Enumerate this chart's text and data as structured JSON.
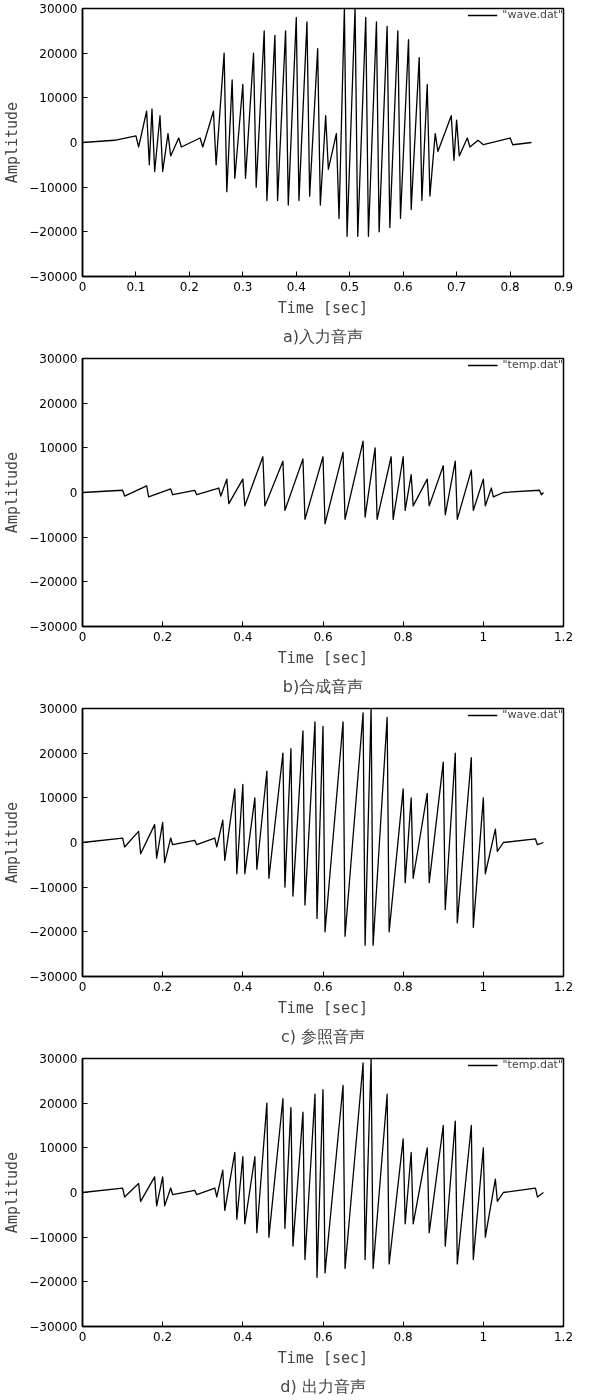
{
  "chart_data": [
    {
      "type": "line",
      "title": "a)入力音声",
      "xlabel": "Time [sec]",
      "ylabel": "Amplitude",
      "xlim": [
        0,
        0.9
      ],
      "xticks": [
        0,
        0.1,
        0.2,
        0.3,
        0.4,
        0.5,
        0.6,
        0.7,
        0.8,
        0.9
      ],
      "ylim": [
        -30000,
        30000
      ],
      "yticks": [
        -30000,
        -20000,
        -10000,
        0,
        10000,
        20000,
        30000
      ],
      "grid": false,
      "legend": "top right",
      "marker": "none",
      "line_style": "solid",
      "series": [
        {
          "name": "\"wave.dat\"",
          "color": "#000000",
          "x": [
            0,
            0.06,
            0.1,
            0.105,
            0.12,
            0.125,
            0.13,
            0.135,
            0.145,
            0.15,
            0.16,
            0.165,
            0.18,
            0.185,
            0.22,
            0.225,
            0.245,
            0.25,
            0.265,
            0.27,
            0.28,
            0.285,
            0.3,
            0.305,
            0.32,
            0.325,
            0.34,
            0.345,
            0.36,
            0.365,
            0.38,
            0.385,
            0.4,
            0.405,
            0.42,
            0.425,
            0.44,
            0.445,
            0.455,
            0.46,
            0.475,
            0.48,
            0.49,
            0.495,
            0.51,
            0.515,
            0.53,
            0.535,
            0.55,
            0.555,
            0.57,
            0.575,
            0.59,
            0.595,
            0.61,
            0.615,
            0.63,
            0.635,
            0.645,
            0.65,
            0.66,
            0.665,
            0.69,
            0.695,
            0.7,
            0.705,
            0.72,
            0.725,
            0.74,
            0.75,
            0.8,
            0.805,
            0.84
          ],
          "values": [
            0,
            500,
            1500,
            -1000,
            7000,
            -5000,
            7500,
            -6500,
            6000,
            -6500,
            2000,
            -3000,
            1000,
            -1000,
            1000,
            -1000,
            7000,
            -5000,
            20000,
            -11000,
            14000,
            -8000,
            13000,
            -8000,
            20000,
            -10000,
            25000,
            -13000,
            24000,
            -13000,
            25000,
            -14000,
            28000,
            -13000,
            27000,
            -12000,
            21000,
            -14000,
            6000,
            -6000,
            2000,
            -17000,
            30000,
            -21000,
            30000,
            -21000,
            28000,
            -21000,
            27000,
            -20000,
            26000,
            -19000,
            25000,
            -17000,
            23000,
            -15000,
            19000,
            -13000,
            13000,
            -12000,
            2000,
            -2000,
            6000,
            -4000,
            5000,
            -3000,
            1000,
            -1000,
            500,
            -500,
            1000,
            -500,
            0
          ]
        }
      ]
    },
    {
      "type": "line",
      "title": "b)合成音声",
      "xlabel": "Time [sec]",
      "ylabel": "Amplitude",
      "xlim": [
        0,
        1.2
      ],
      "xticks": [
        0,
        0.2,
        0.4,
        0.6,
        0.8,
        1,
        1.2
      ],
      "ylim": [
        -30000,
        30000
      ],
      "yticks": [
        -30000,
        -20000,
        -10000,
        0,
        10000,
        20000,
        30000
      ],
      "grid": false,
      "legend": "top right",
      "marker": "none",
      "line_style": "solid",
      "series": [
        {
          "name": "\"temp.dat\"",
          "color": "#000000",
          "x": [
            0,
            0.1,
            0.105,
            0.16,
            0.165,
            0.22,
            0.225,
            0.28,
            0.285,
            0.34,
            0.345,
            0.36,
            0.365,
            0.4,
            0.405,
            0.45,
            0.455,
            0.5,
            0.505,
            0.55,
            0.555,
            0.6,
            0.605,
            0.65,
            0.655,
            0.7,
            0.705,
            0.73,
            0.735,
            0.77,
            0.775,
            0.8,
            0.805,
            0.82,
            0.825,
            0.86,
            0.865,
            0.9,
            0.905,
            0.93,
            0.935,
            0.97,
            0.975,
            1.0,
            1.005,
            1.02,
            1.025,
            1.05,
            1.14,
            1.145,
            1.15
          ],
          "values": [
            0,
            500,
            -800,
            1500,
            -1000,
            800,
            -500,
            500,
            -500,
            1000,
            -800,
            3000,
            -2500,
            3000,
            -3000,
            8000,
            -3000,
            7000,
            -4000,
            7500,
            -6000,
            8000,
            -7000,
            9000,
            -6000,
            11500,
            -5500,
            10000,
            -6000,
            8000,
            -6000,
            8000,
            -4000,
            4000,
            -3000,
            3000,
            -3000,
            6000,
            -5000,
            7000,
            -6000,
            5000,
            -4000,
            3000,
            -3000,
            1000,
            -1000,
            0,
            500,
            -500,
            0
          ]
        }
      ]
    },
    {
      "type": "line",
      "title": "c) 参照音声",
      "xlabel": "Time [sec]",
      "ylabel": "Amplitude",
      "xlim": [
        0,
        1.2
      ],
      "xticks": [
        0,
        0.2,
        0.4,
        0.6,
        0.8,
        1,
        1.2
      ],
      "ylim": [
        -30000,
        30000
      ],
      "yticks": [
        -30000,
        -20000,
        -10000,
        0,
        10000,
        20000,
        30000
      ],
      "grid": false,
      "legend": "top right",
      "marker": "none",
      "line_style": "solid",
      "series": [
        {
          "name": "\"wave.dat\"",
          "color": "#000000",
          "x": [
            0,
            0.1,
            0.105,
            0.14,
            0.145,
            0.18,
            0.185,
            0.2,
            0.205,
            0.22,
            0.225,
            0.28,
            0.285,
            0.33,
            0.335,
            0.35,
            0.355,
            0.38,
            0.385,
            0.4,
            0.405,
            0.43,
            0.435,
            0.46,
            0.465,
            0.5,
            0.505,
            0.52,
            0.525,
            0.55,
            0.555,
            0.58,
            0.585,
            0.6,
            0.605,
            0.65,
            0.655,
            0.7,
            0.705,
            0.72,
            0.725,
            0.76,
            0.765,
            0.8,
            0.805,
            0.82,
            0.825,
            0.86,
            0.865,
            0.9,
            0.905,
            0.93,
            0.935,
            0.97,
            0.975,
            1.0,
            1.005,
            1.03,
            1.035,
            1.05,
            1.13,
            1.135,
            1.15
          ],
          "values": [
            0,
            1000,
            -1000,
            2500,
            -2500,
            4000,
            -3500,
            4500,
            -4500,
            1000,
            -500,
            500,
            -500,
            1000,
            -1000,
            5000,
            -4000,
            12000,
            -7000,
            13000,
            -7000,
            10000,
            -6000,
            16000,
            -8000,
            20000,
            -10000,
            21000,
            -12000,
            25000,
            -14000,
            27000,
            -17000,
            26000,
            -20000,
            27000,
            -21000,
            29000,
            -23000,
            30000,
            -23000,
            28000,
            -20000,
            12000,
            -9000,
            10000,
            -8000,
            11000,
            -9000,
            18000,
            -15000,
            20000,
            -18000,
            19000,
            -19000,
            10000,
            -7000,
            3000,
            -2000,
            0,
            800,
            -500,
            0
          ]
        }
      ]
    },
    {
      "type": "line",
      "title": "d) 出力音声",
      "xlabel": "Time [sec]",
      "ylabel": "Amplitude",
      "xlim": [
        0,
        1.2
      ],
      "xticks": [
        0,
        0.2,
        0.4,
        0.6,
        0.8,
        1,
        1.2
      ],
      "ylim": [
        -30000,
        30000
      ],
      "yticks": [
        -30000,
        -20000,
        -10000,
        0,
        10000,
        20000,
        30000
      ],
      "grid": false,
      "legend": "top right",
      "marker": "none",
      "line_style": "solid",
      "series": [
        {
          "name": "\"temp.dat\"",
          "color": "#000000",
          "x": [
            0,
            0.1,
            0.105,
            0.14,
            0.145,
            0.18,
            0.185,
            0.2,
            0.205,
            0.22,
            0.225,
            0.28,
            0.285,
            0.33,
            0.335,
            0.35,
            0.355,
            0.38,
            0.385,
            0.4,
            0.405,
            0.43,
            0.435,
            0.46,
            0.465,
            0.5,
            0.505,
            0.52,
            0.525,
            0.55,
            0.555,
            0.58,
            0.585,
            0.6,
            0.605,
            0.65,
            0.655,
            0.7,
            0.705,
            0.72,
            0.725,
            0.76,
            0.765,
            0.8,
            0.805,
            0.82,
            0.825,
            0.86,
            0.865,
            0.9,
            0.905,
            0.93,
            0.935,
            0.97,
            0.975,
            1.0,
            1.005,
            1.03,
            1.035,
            1.05,
            1.13,
            1.135,
            1.15
          ],
          "values": [
            0,
            1000,
            -1000,
            2000,
            -2000,
            3500,
            -3000,
            3500,
            -3000,
            1000,
            -500,
            500,
            -500,
            1000,
            -1000,
            5000,
            -4000,
            9000,
            -6000,
            8000,
            -7000,
            8000,
            -9000,
            20000,
            -10000,
            21000,
            -8000,
            19000,
            -12000,
            18000,
            -15000,
            22000,
            -19000,
            23000,
            -18000,
            24000,
            -17000,
            29000,
            -15000,
            30000,
            -17000,
            22000,
            -16000,
            12000,
            -7000,
            9000,
            -7000,
            10000,
            -9000,
            15000,
            -12000,
            16000,
            -16000,
            15000,
            -15000,
            10000,
            -10000,
            3000,
            -2000,
            0,
            1000,
            -1000,
            0
          ]
        }
      ]
    }
  ]
}
